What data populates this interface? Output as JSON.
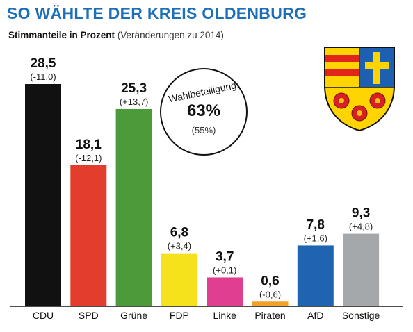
{
  "header": {
    "title": "SO WÄHLTE DER KREIS OLDENBURG",
    "subtitle": "Stimmanteile in Prozent",
    "subtitle_note": "(Veränderungen zu 2014)"
  },
  "turnout": {
    "label": "Wahlbeteiligung:",
    "value": "63%",
    "previous": "(55%)"
  },
  "crest": {
    "icon": "coat-of-arms-icon"
  },
  "chart_data": {
    "type": "bar",
    "title": "SO WÄHLTE DER KREIS OLDENBURG",
    "subtitle": "Stimmanteile in Prozent (Veränderungen zu 2014)",
    "categories": [
      "CDU",
      "SPD",
      "Grüne",
      "FDP",
      "Linke",
      "Piraten",
      "AfD",
      "Sonstige"
    ],
    "values": [
      28.5,
      18.1,
      25.3,
      6.8,
      3.7,
      0.6,
      7.8,
      9.3
    ],
    "value_labels": [
      "28,5",
      "18,1",
      "25,3",
      "6,8",
      "3,7",
      "0,6",
      "7,8",
      "9,3"
    ],
    "changes": [
      "(-11,0)",
      "(-12,1)",
      "(+13,7)",
      "(+3,4)",
      "(+0,1)",
      "(-0,6)",
      "(+1,6)",
      "(+4,8)"
    ],
    "colors": [
      "#111111",
      "#e33d2d",
      "#4d9a3a",
      "#f5e21d",
      "#e03f8f",
      "#f0a12a",
      "#1f64b0",
      "#a5a8ab"
    ],
    "ylim": [
      0,
      30
    ],
    "grid": false,
    "legend": "none",
    "xlabel": "",
    "ylabel": ""
  }
}
